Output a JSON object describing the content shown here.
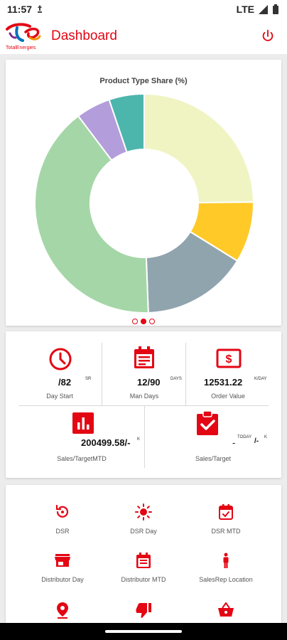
{
  "status_bar": {
    "time": "11:57",
    "network": "LTE"
  },
  "app_bar": {
    "logo_text": "TotalEnergies",
    "title": "Dashboard",
    "power_icon": "power-icon"
  },
  "chart_data": {
    "type": "pie",
    "title": "Product Type Share (%)",
    "donut": true,
    "values": [
      24.8,
      9.0,
      15.6,
      40.3,
      5.1,
      5.2
    ],
    "colors": [
      "#f0f4c3",
      "#ffca28",
      "#90a4ae",
      "#a5d6a7",
      "#b39ddb",
      "#4db6ac"
    ]
  },
  "pager": {
    "pages": 3,
    "active": 1
  },
  "stats": {
    "day_start": {
      "value": "/82",
      "sup": "SR",
      "label": "Day Start"
    },
    "man_days": {
      "value": "12/90",
      "sup": "DAYS",
      "label": "Man Days"
    },
    "order_value": {
      "value": "12531.22",
      "sup": "K/DAY",
      "label": "Order Value"
    },
    "sales_target_mtd": {
      "value": "200499.58/-",
      "sup": "K",
      "label": "Sales/TargetMTD"
    },
    "sales_target": {
      "value": "-",
      "sup_mid": "TODAY",
      "tail": "/-",
      "sup": "K",
      "label": "Sales/Target"
    }
  },
  "menu": [
    {
      "label": "DSR",
      "icon": "dsr-history-icon"
    },
    {
      "label": "DSR Day",
      "icon": "sun-icon"
    },
    {
      "label": "DSR MTD",
      "icon": "calendar-check-icon"
    },
    {
      "label": "Distributor Day",
      "icon": "store-icon"
    },
    {
      "label": "Distributor MTD",
      "icon": "calendar-list-icon"
    },
    {
      "label": "SalesRep Location",
      "icon": "person-icon"
    },
    {
      "label": "",
      "icon": "location-pin-icon"
    },
    {
      "label": "",
      "icon": "thumb-down-icon"
    },
    {
      "label": "",
      "icon": "basket-icon"
    }
  ],
  "colors": {
    "accent": "#e30613"
  }
}
